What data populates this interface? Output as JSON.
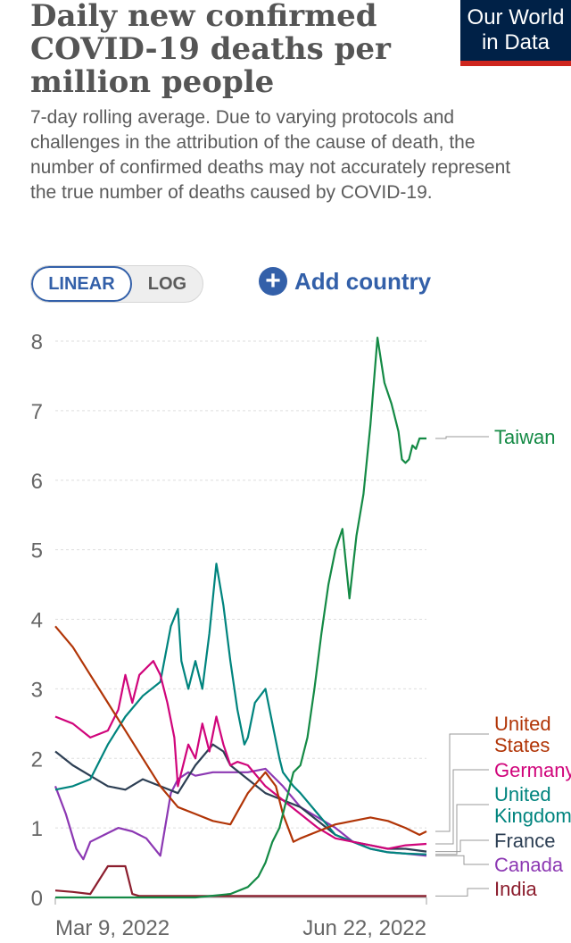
{
  "header": {
    "title": "Daily new confirmed COVID-19 deaths per million people",
    "subtitle": "7-day rolling average. Due to varying protocols and challenges in the attribution of the cause of death, the number of confirmed deaths may not accurately represent the true number of deaths caused by COVID-19.",
    "logo_line1": "Our World",
    "logo_line2": "in Data"
  },
  "controls": {
    "scale_linear": "LINEAR",
    "scale_log": "LOG",
    "active_scale": "linear",
    "add_country": "Add country"
  },
  "colors": {
    "Taiwan": "#148a45",
    "United States": "#b13507",
    "Germany": "#d0057b",
    "United Kingdom": "#00847e",
    "France": "#2d3f54",
    "Canada": "#8c38b3",
    "India": "#8c1e2e",
    "accent": "#3360a9"
  },
  "chart_data": {
    "type": "line",
    "xlabel": "",
    "ylabel": "",
    "x_tick_labels": [
      "Mar 9, 2022",
      "Jun 22, 2022"
    ],
    "x_range": [
      "Mar 9, 2022",
      "Jun 22, 2022"
    ],
    "ylim": [
      0,
      8
    ],
    "y_ticks": [
      0,
      1,
      2,
      3,
      4,
      5,
      6,
      7,
      8
    ],
    "grid": true,
    "legend": "right, labels at line ends",
    "series": [
      {
        "name": "Taiwan",
        "end_value": 6.6,
        "x": [
          0,
          20,
          40,
          50,
          55,
          58,
          60,
          62,
          64,
          66,
          68,
          70,
          72,
          74,
          76,
          78,
          80,
          82,
          84,
          86,
          88,
          90,
          92,
          94,
          96,
          98,
          99,
          100,
          101,
          102,
          103,
          104,
          105,
          106
        ],
        "y": [
          0,
          0,
          0,
          0.05,
          0.15,
          0.3,
          0.5,
          0.8,
          1.0,
          1.4,
          1.8,
          1.9,
          2.3,
          3.0,
          3.8,
          4.5,
          5.0,
          5.3,
          4.3,
          5.2,
          5.8,
          6.8,
          8.05,
          7.4,
          7.1,
          6.7,
          6.3,
          6.25,
          6.3,
          6.5,
          6.45,
          6.6,
          6.6,
          6.6
        ]
      },
      {
        "name": "United States",
        "end_value": 0.95,
        "x": [
          0,
          5,
          10,
          15,
          20,
          25,
          30,
          35,
          40,
          45,
          50,
          55,
          60,
          63,
          65,
          68,
          70,
          75,
          80,
          85,
          90,
          95,
          100,
          102,
          104,
          106
        ],
        "y": [
          3.9,
          3.6,
          3.2,
          2.8,
          2.4,
          2.0,
          1.6,
          1.3,
          1.2,
          1.1,
          1.05,
          1.5,
          1.8,
          1.6,
          1.2,
          0.8,
          0.85,
          0.95,
          1.05,
          1.1,
          1.15,
          1.1,
          1.0,
          0.95,
          0.9,
          0.95
        ]
      },
      {
        "name": "Germany",
        "end_value": 0.77,
        "x": [
          0,
          5,
          10,
          15,
          18,
          20,
          22,
          24,
          26,
          28,
          30,
          32,
          34,
          35,
          38,
          40,
          42,
          44,
          46,
          48,
          50,
          52,
          55,
          60,
          65,
          70,
          75,
          80,
          85,
          90,
          95,
          100,
          106
        ],
        "y": [
          2.6,
          2.5,
          2.3,
          2.4,
          2.7,
          3.2,
          2.8,
          3.2,
          3.3,
          3.4,
          3.2,
          2.8,
          2.3,
          1.6,
          2.2,
          2.0,
          2.5,
          2.1,
          2.6,
          2.2,
          1.9,
          1.95,
          1.9,
          1.6,
          1.4,
          1.2,
          1.0,
          0.85,
          0.8,
          0.75,
          0.7,
          0.75,
          0.77
        ]
      },
      {
        "name": "United Kingdom",
        "end_value": 0.62,
        "x": [
          0,
          5,
          10,
          15,
          20,
          25,
          30,
          33,
          35,
          36,
          38,
          40,
          42,
          44,
          46,
          48,
          50,
          52,
          54,
          55,
          57,
          60,
          62,
          64,
          65,
          68,
          70,
          75,
          80,
          85,
          90,
          95,
          100,
          106
        ],
        "y": [
          1.55,
          1.6,
          1.7,
          2.2,
          2.6,
          2.9,
          3.1,
          3.9,
          4.15,
          3.4,
          3.0,
          3.4,
          3.0,
          3.8,
          4.8,
          4.2,
          3.4,
          2.7,
          2.2,
          2.3,
          2.8,
          3.0,
          2.5,
          2.0,
          1.8,
          1.6,
          1.5,
          1.2,
          0.9,
          0.8,
          0.7,
          0.65,
          0.63,
          0.62
        ]
      },
      {
        "name": "France",
        "end_value": 0.66,
        "x": [
          0,
          5,
          10,
          15,
          20,
          25,
          30,
          35,
          40,
          45,
          48,
          50,
          55,
          60,
          65,
          70,
          75,
          80,
          85,
          90,
          95,
          100,
          106
        ],
        "y": [
          2.1,
          1.9,
          1.75,
          1.6,
          1.55,
          1.7,
          1.6,
          1.5,
          1.9,
          2.2,
          2.1,
          1.9,
          1.7,
          1.5,
          1.4,
          1.3,
          1.1,
          0.9,
          0.8,
          0.75,
          0.7,
          0.7,
          0.66
        ]
      },
      {
        "name": "Canada",
        "end_value": 0.6,
        "x": [
          0,
          3,
          6,
          8,
          10,
          14,
          18,
          22,
          26,
          30,
          33,
          35,
          38,
          40,
          45,
          50,
          55,
          60,
          65,
          70,
          75,
          80,
          85,
          90,
          95,
          100,
          106
        ],
        "y": [
          1.6,
          1.2,
          0.7,
          0.55,
          0.8,
          0.9,
          1.0,
          0.95,
          0.85,
          0.6,
          1.5,
          1.7,
          1.8,
          1.75,
          1.8,
          1.8,
          1.8,
          1.85,
          1.6,
          1.3,
          1.15,
          1.0,
          0.8,
          0.7,
          0.65,
          0.63,
          0.6
        ]
      },
      {
        "name": "India",
        "end_value": 0.02,
        "x": [
          0,
          5,
          10,
          15,
          20,
          22,
          24,
          30,
          40,
          50,
          60,
          70,
          80,
          90,
          100,
          106
        ],
        "y": [
          0.1,
          0.08,
          0.05,
          0.45,
          0.45,
          0.05,
          0.02,
          0.02,
          0.02,
          0.02,
          0.02,
          0.02,
          0.02,
          0.02,
          0.02,
          0.02
        ]
      }
    ]
  }
}
